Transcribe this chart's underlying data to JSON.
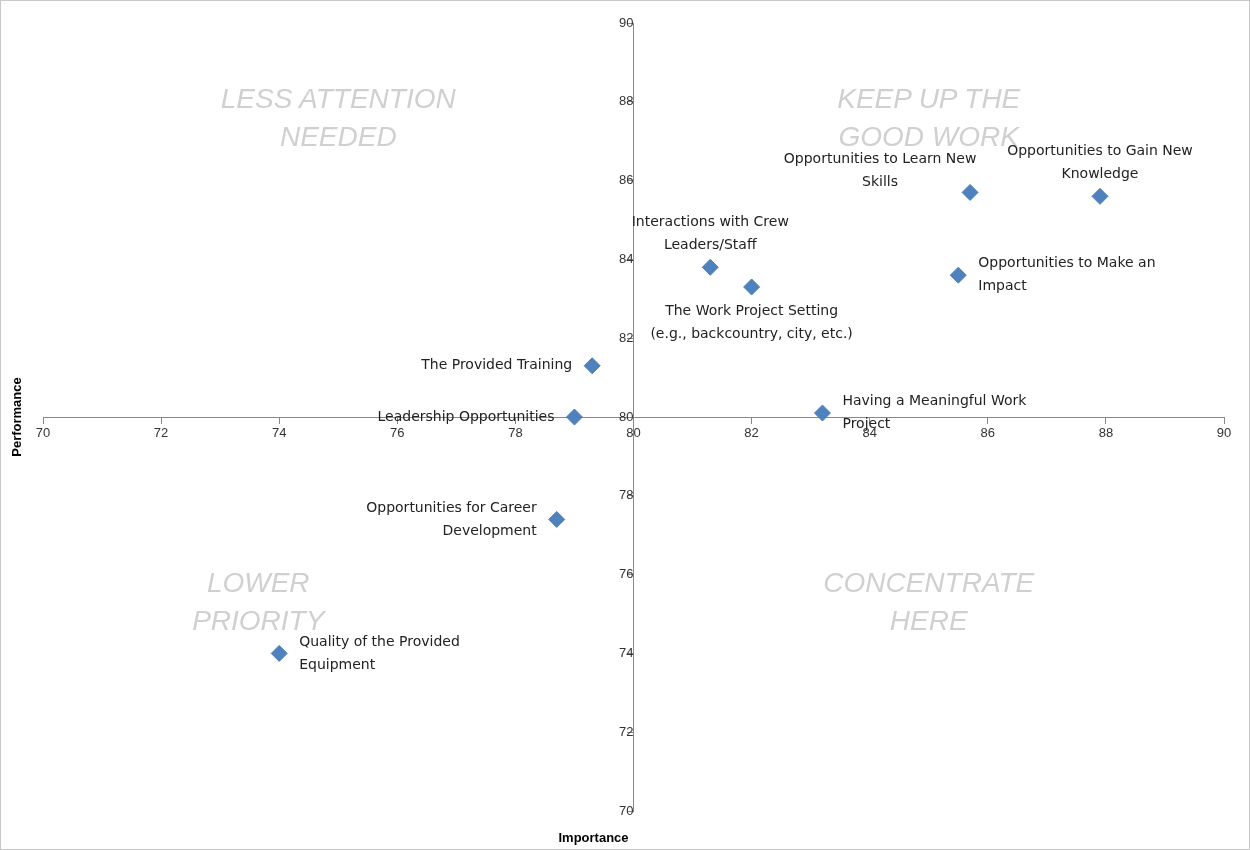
{
  "chart_data": {
    "type": "scatter",
    "xlabel": "Importance",
    "ylabel": "Performance",
    "xlim": [
      70,
      90
    ],
    "xticks": [
      70,
      72,
      74,
      76,
      78,
      80,
      82,
      84,
      86,
      88,
      90
    ],
    "ylim": [
      70,
      90
    ],
    "yticks": [
      70,
      72,
      74,
      76,
      78,
      80,
      82,
      84,
      86,
      88,
      90
    ],
    "grid": false,
    "legend": false,
    "marker": "diamond",
    "series": [
      {
        "color": "#4f81bd",
        "x": [
          87.9,
          85.7,
          81.3,
          82.0,
          85.5,
          79.3,
          79.0,
          83.2,
          78.7,
          74.0
        ],
        "values": [
          85.6,
          85.7,
          83.8,
          83.3,
          83.6,
          81.3,
          80.0,
          80.1,
          77.4,
          74.0
        ]
      }
    ],
    "annotations": [
      "LESS ATTENTION NEEDED",
      "KEEP UP THE GOOD WORK",
      "LOWER PRIORITY",
      "CONCENTRATE HERE",
      {
        "text": "Opportunities to Gain New Knowledge",
        "x": 87.9,
        "y": 85.6
      },
      {
        "text": "Opportunities to Learn New Skills",
        "x": 85.7,
        "y": 85.7
      },
      {
        "text": "Interactions with Crew Leaders/Staff",
        "x": 81.3,
        "y": 83.8
      },
      {
        "text": "The Work Project Setting (e.g., backcountry, city, etc.)",
        "x": 82.0,
        "y": 83.3
      },
      {
        "text": "Opportunities to Make an Impact",
        "x": 85.5,
        "y": 83.6
      },
      {
        "text": "The Provided Training",
        "x": 79.3,
        "y": 81.3
      },
      {
        "text": "Leadership Opportunities",
        "x": 79.0,
        "y": 80.0
      },
      {
        "text": "Having a Meaningful Work Project",
        "x": 83.2,
        "y": 80.1
      },
      {
        "text": "Opportunities for Career Development",
        "x": 78.7,
        "y": 77.4
      },
      {
        "text": "Quality of the Provided Equipment",
        "x": 74.0,
        "y": 74.0
      }
    ]
  }
}
